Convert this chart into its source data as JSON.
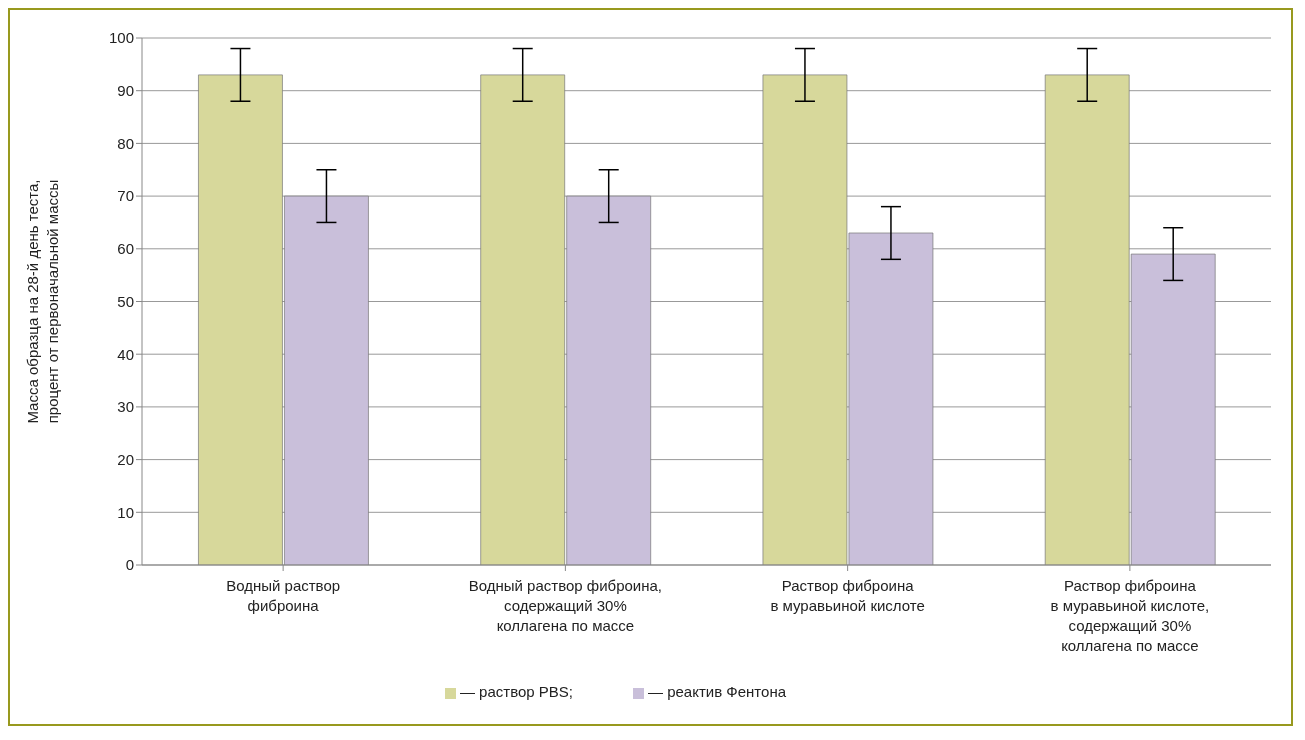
{
  "chart_data": {
    "type": "bar",
    "categories": [
      "Водный раствор\nфиброина",
      "Водный раствор фиброина,\nсодержащий 30%\nколлагена по массе",
      "Раствор фиброина\nв муравьиной кислоте",
      "Раствор фиброина\nв муравьиной кислоте,\nсодержащий 30%\nколлагена по массе"
    ],
    "series": [
      {
        "name": "— раствор PBS;",
        "color": "#d7d89b",
        "values": [
          93,
          93,
          93,
          93
        ],
        "errors": [
          5,
          5,
          5,
          5
        ]
      },
      {
        "name": "— реактив Фентона",
        "color": "#c9bfda",
        "values": [
          70,
          70,
          63,
          59
        ],
        "errors": [
          5,
          5,
          5,
          5
        ]
      }
    ],
    "ylabel": "Масса образца на 28-й день теста,\nпроцент от первоначальной массы",
    "ylim": [
      0,
      100
    ],
    "yticks": [
      0,
      10,
      20,
      30,
      40,
      50,
      60,
      70,
      80,
      90,
      100
    ],
    "grid": "y",
    "legend": "bottom"
  }
}
